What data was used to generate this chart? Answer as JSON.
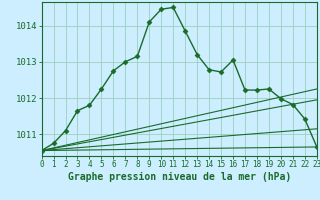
{
  "title": "Graphe pression niveau de la mer (hPa)",
  "background_color": "#cceeff",
  "grid_color": "#9dcfbe",
  "line_color": "#1a6b2a",
  "xlim": [
    0,
    23
  ],
  "ylim": [
    1010.4,
    1014.65
  ],
  "yticks": [
    1011,
    1012,
    1013,
    1014
  ],
  "xticks": [
    0,
    1,
    2,
    3,
    4,
    5,
    6,
    7,
    8,
    9,
    10,
    11,
    12,
    13,
    14,
    15,
    16,
    17,
    18,
    19,
    20,
    21,
    22,
    23
  ],
  "main_series": {
    "x": [
      0,
      1,
      2,
      3,
      4,
      5,
      6,
      7,
      8,
      9,
      10,
      11,
      12,
      13,
      14,
      15,
      16,
      17,
      18,
      19,
      20,
      21,
      22,
      23
    ],
    "y": [
      1010.55,
      1010.75,
      1011.1,
      1011.65,
      1011.8,
      1012.25,
      1012.75,
      1013.0,
      1013.15,
      1014.1,
      1014.45,
      1014.5,
      1013.85,
      1013.2,
      1012.78,
      1012.72,
      1013.05,
      1012.22,
      1012.22,
      1012.25,
      1011.98,
      1011.82,
      1011.42,
      1010.65
    ]
  },
  "straight_lines": [
    {
      "x": [
        0,
        23
      ],
      "y": [
        1010.55,
        1011.95
      ]
    },
    {
      "x": [
        0,
        23
      ],
      "y": [
        1010.55,
        1010.65
      ]
    },
    {
      "x": [
        0,
        23
      ],
      "y": [
        1010.55,
        1012.25
      ]
    },
    {
      "x": [
        0,
        23
      ],
      "y": [
        1010.55,
        1011.15
      ]
    }
  ],
  "marker": "D",
  "markersize": 2.5,
  "line_lw": 1.0,
  "straight_lw": 0.8,
  "xlabel_fontsize": 7,
  "ytick_fontsize": 6.5,
  "xtick_fontsize": 5.5
}
